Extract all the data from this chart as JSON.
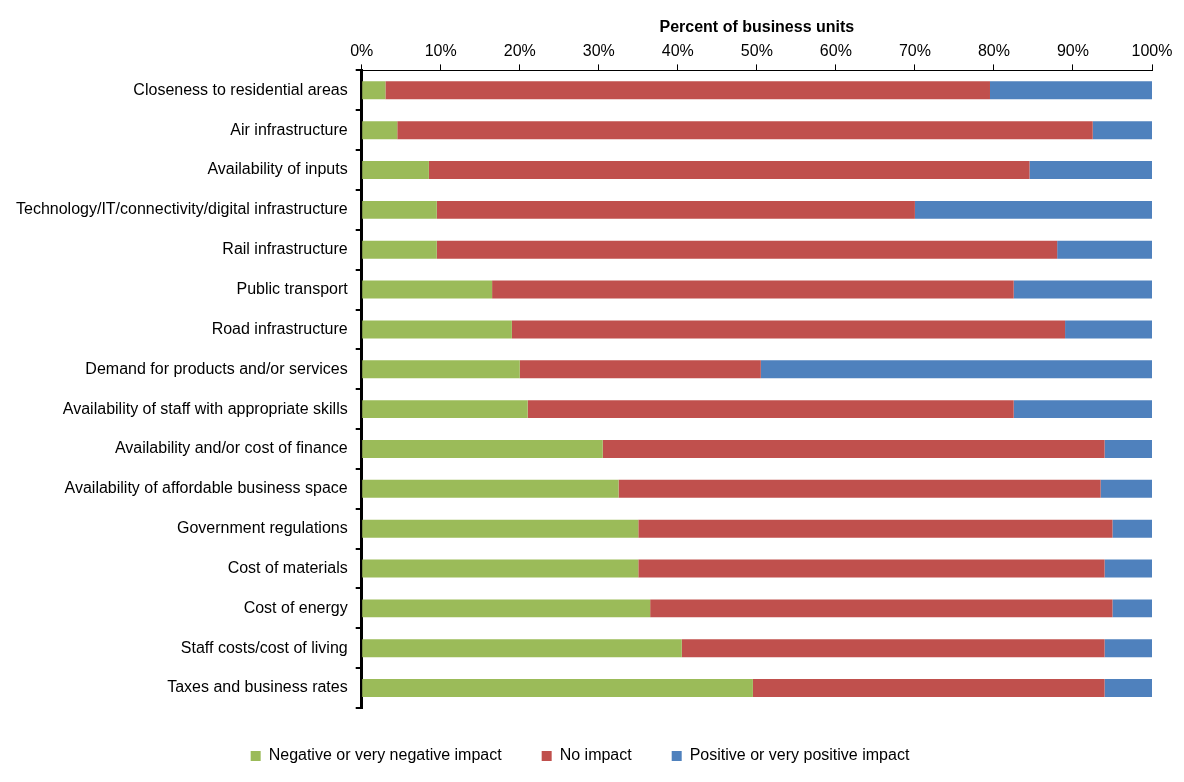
{
  "chart_data": {
    "type": "bar",
    "orientation": "horizontal",
    "stacked": true,
    "xlabel": "Percent of business units",
    "categories": [
      "Closeness to residential areas",
      "Air infrastructure",
      "Availability of inputs",
      "Technology/IT/connectivity/digital infrastructure",
      "Rail infrastructure",
      "Public transport",
      "Road infrastructure",
      "Demand for products and/or services",
      "Availability of staff with appropriate skills",
      "Availability and/or cost of finance",
      "Availability of affordable business space",
      "Government regulations",
      "Cost of materials",
      "Cost of energy",
      "Staff costs/cost of living",
      "Taxes and business rates"
    ],
    "series": [
      {
        "name": "Negative or very negative impact",
        "color": "#9bbb59",
        "values": [
          3,
          4.5,
          8.5,
          9.5,
          9.5,
          16.5,
          19,
          20,
          21,
          30.5,
          32.5,
          35,
          35,
          36.5,
          40.5,
          49.5
        ]
      },
      {
        "name": "No impact",
        "color": "#c0504d",
        "values": [
          76.5,
          88,
          76,
          60.5,
          78.5,
          66,
          70,
          30.5,
          61.5,
          63.5,
          61,
          60,
          59,
          58.5,
          53.5,
          44.5
        ]
      },
      {
        "name": "Positive or very positive impact",
        "color": "#4f81bd",
        "values": [
          20.5,
          7.5,
          15.5,
          30,
          12,
          17.5,
          11,
          49.5,
          17.5,
          6,
          6.5,
          5,
          6,
          5,
          6,
          6
        ]
      }
    ],
    "xlim": [
      0,
      100
    ],
    "xticks": [
      {
        "value": 0,
        "label": "0%"
      },
      {
        "value": 10,
        "label": "10%"
      },
      {
        "value": 20,
        "label": "20%"
      },
      {
        "value": 30,
        "label": "30%"
      },
      {
        "value": 40,
        "label": "40%"
      },
      {
        "value": 50,
        "label": "50%"
      },
      {
        "value": 60,
        "label": "60%"
      },
      {
        "value": 70,
        "label": "70%"
      },
      {
        "value": 80,
        "label": "80%"
      },
      {
        "value": 90,
        "label": "90%"
      },
      {
        "value": 100,
        "label": "100%"
      }
    ],
    "grid": false,
    "legend": "bottom"
  }
}
